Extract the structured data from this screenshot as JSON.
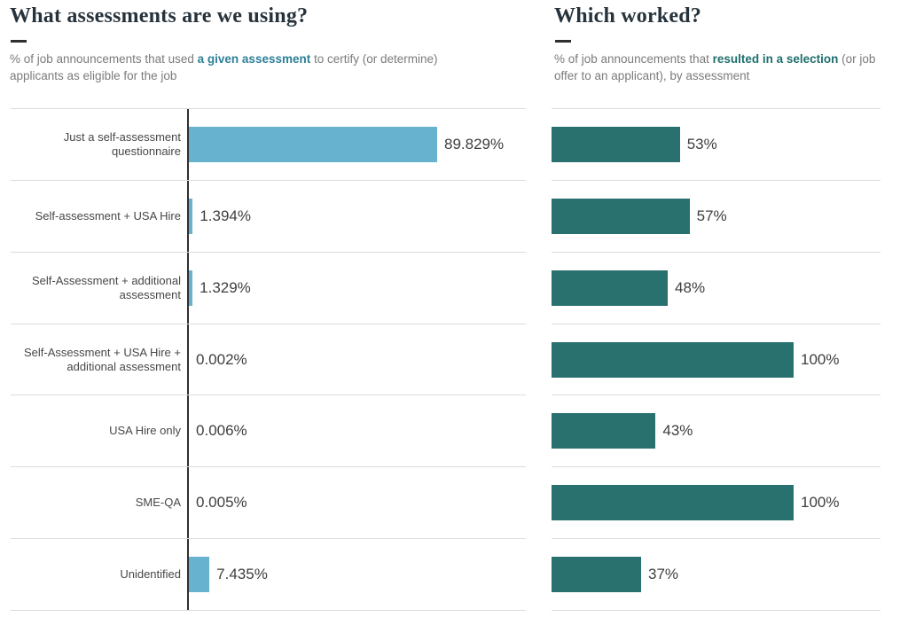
{
  "left_panel": {
    "title": "What assessments are we using?",
    "accent_color": "#2d7f97",
    "subtitle_segments": [
      {
        "text": "% of job announcements that used ",
        "bold": false
      },
      {
        "text": "a given assessment",
        "bold": true
      },
      {
        "text": " to certify (or determine) applicants as eligible for the job",
        "bold": false
      }
    ]
  },
  "right_panel": {
    "title": "Which worked?",
    "accent_color": "#1e6f6d",
    "subtitle_segments": [
      {
        "text": "% of job announcements that ",
        "bold": false
      },
      {
        "text": "resulted in a selection",
        "bold": true
      },
      {
        "text": " (or job offer to an applicant), by assessment",
        "bold": false
      }
    ]
  },
  "colors": {
    "left_bar": "#67b2cf",
    "right_bar": "#28716f",
    "gridline": "#dcdcdc",
    "axis_line": "#2f2f2f",
    "title_text": "#27333c",
    "subtitle_text": "#7b7b7b",
    "value_text": "#3e3e3e",
    "category_text": "#474747"
  },
  "chart_data": [
    {
      "type": "bar",
      "orientation": "horizontal",
      "title": "What assessments are we using?",
      "subtitle": "% of job announcements that used a given assessment to certify (or determine) applicants as eligible for the job",
      "categories": [
        "Just a self-assessment questionnaire",
        "Self-assessment + USA Hire",
        "Self-Assessment + additional assessment",
        "Self-Assessment + USA Hire + additional assessment",
        "USA Hire only",
        "SME-QA",
        "Unidentified"
      ],
      "values": [
        89.829,
        1.394,
        1.329,
        0.002,
        0.006,
        0.005,
        7.435
      ],
      "value_labels": [
        "89.829%",
        "1.394%",
        "1.329%",
        "0.002%",
        "0.006%",
        "0.005%",
        "7.435%"
      ],
      "bar_color": "#67b2cf",
      "xlim": [
        0,
        100
      ],
      "grid": "row-separators",
      "axis_line": true,
      "show_category_labels": true
    },
    {
      "type": "bar",
      "orientation": "horizontal",
      "title": "Which worked?",
      "subtitle": "% of job announcements that resulted in a selection (or job offer to an applicant), by assessment",
      "categories": [
        "Just a self-assessment questionnaire",
        "Self-assessment + USA Hire",
        "Self-Assessment + additional assessment",
        "Self-Assessment + USA Hire + additional assessment",
        "USA Hire only",
        "SME-QA",
        "Unidentified"
      ],
      "values": [
        53,
        57,
        48,
        100,
        43,
        100,
        37
      ],
      "value_labels": [
        "53%",
        "57%",
        "48%",
        "100%",
        "43%",
        "100%",
        "37%"
      ],
      "bar_color": "#28716f",
      "xlim": [
        0,
        100
      ],
      "grid": "row-separators",
      "axis_line": false,
      "show_category_labels": false
    }
  ]
}
